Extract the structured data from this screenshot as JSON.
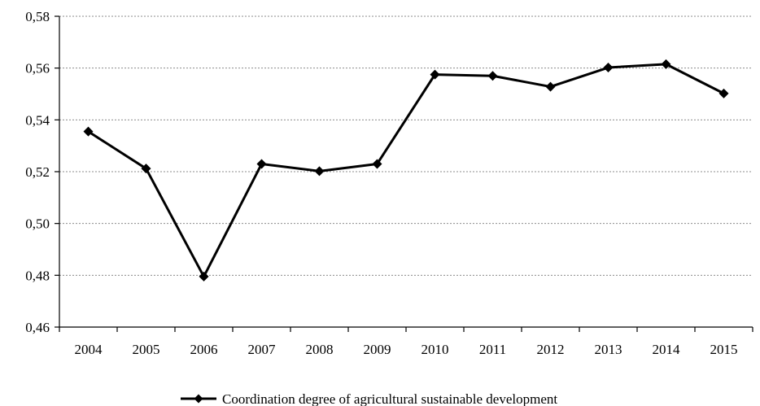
{
  "chart_data": {
    "type": "line",
    "categories": [
      "2004",
      "2005",
      "2006",
      "2007",
      "2008",
      "2009",
      "2010",
      "2011",
      "2012",
      "2013",
      "2014",
      "2015"
    ],
    "series": [
      {
        "name": "Coordination degree of agricultural sustainable development",
        "values": [
          0.5355,
          0.5212,
          0.4795,
          0.523,
          0.5202,
          0.523,
          0.5575,
          0.557,
          0.5528,
          0.5602,
          0.5615,
          0.5502
        ]
      }
    ],
    "y_ticks": [
      "0,46",
      "0,48",
      "0,50",
      "0,52",
      "0,54",
      "0,56",
      "0,58"
    ],
    "ylim": [
      0.46,
      0.58
    ],
    "grid": "horizontal-dotted",
    "legend_position": "bottom",
    "series_color": "#000000"
  }
}
